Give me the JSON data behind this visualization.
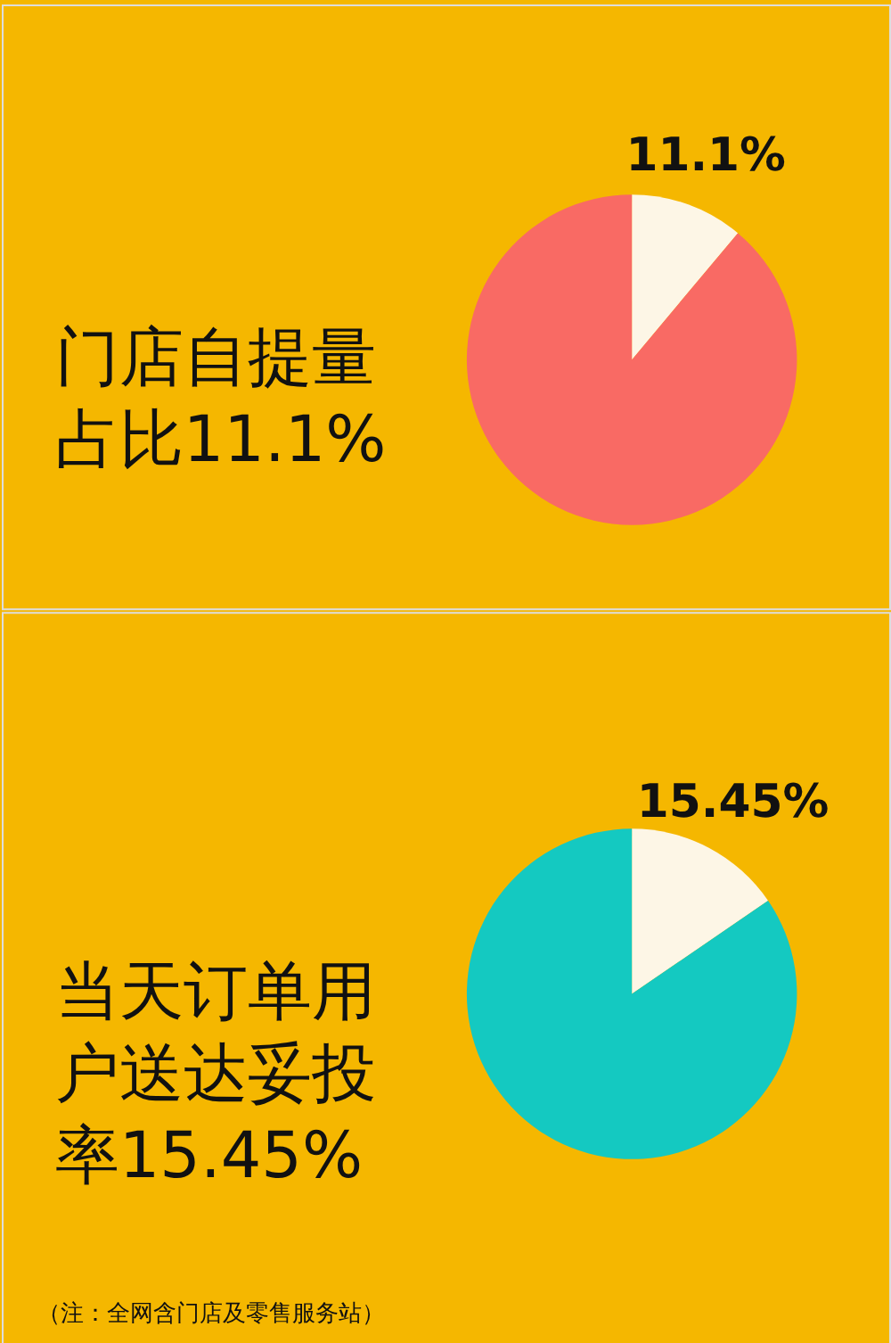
{
  "chart_data": [
    {
      "type": "pie",
      "title": "门店自提量占比11.1%",
      "categories": [
        null,
        null
      ],
      "values": [
        11.1,
        88.9
      ],
      "colors": [
        "#fdf6e6",
        "#f96a64"
      ],
      "value_labels": [
        "11.1%",
        null
      ]
    },
    {
      "type": "pie",
      "title": "当天订单用户送达妥投率15.45%",
      "categories": [
        null,
        null
      ],
      "values": [
        15.45,
        84.55
      ],
      "colors": [
        "#fdf6e6",
        "#14c9c1"
      ],
      "value_labels": [
        "15.45%",
        null
      ],
      "annotations": [
        "（注：全网含门店及零售服务站）"
      ]
    }
  ]
}
